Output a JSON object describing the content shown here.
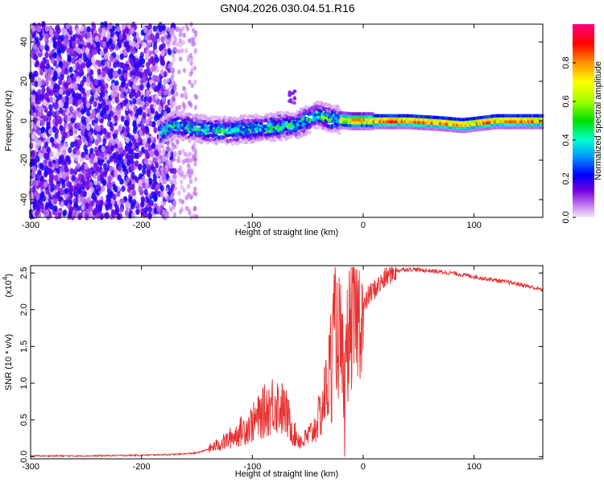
{
  "figure": {
    "title": "GN04.2026.030.04.51.R16"
  },
  "chart_data": [
    {
      "type": "heatmap",
      "xlabel": "Height of straight line (km)",
      "ylabel": "Frequency (Hz)",
      "xlim": [
        -300,
        162
      ],
      "ylim": [
        -49,
        49
      ],
      "xticks": [
        "-300",
        "-200",
        "-100",
        "0",
        "100"
      ],
      "xtick_values": [
        -300,
        -200,
        -100,
        0,
        100
      ],
      "yticks": [
        "-40",
        "-20",
        "0",
        "20",
        "40"
      ],
      "ytick_values": [
        -40,
        -20,
        0,
        20,
        40
      ],
      "colorbar": {
        "label": "Normalized spectral amplitude",
        "range": [
          0,
          1
        ],
        "ticks": [
          "0.0",
          "0.2",
          "0.4",
          "0.6",
          "0.8"
        ],
        "tick_values": [
          0,
          0.2,
          0.4,
          0.6,
          0.8
        ]
      },
      "ridge": [
        {
          "x": -182,
          "y": -6
        },
        {
          "x": -170,
          "y": -2
        },
        {
          "x": -150,
          "y": -4
        },
        {
          "x": -120,
          "y": -5
        },
        {
          "x": -100,
          "y": -4
        },
        {
          "x": -80,
          "y": -3
        },
        {
          "x": -60,
          "y": -2
        },
        {
          "x": -40,
          "y": 3
        },
        {
          "x": -30,
          "y": 1
        },
        {
          "x": -10,
          "y": 0
        },
        {
          "x": 0,
          "y": 0
        },
        {
          "x": 40,
          "y": 0
        },
        {
          "x": 70,
          "y": -1
        },
        {
          "x": 90,
          "y": -2
        },
        {
          "x": 120,
          "y": 0
        },
        {
          "x": 162,
          "y": 0
        }
      ]
    },
    {
      "type": "line",
      "xlabel": "Height of straight line (km)",
      "ylabel": "SNR (10 * v/v)",
      "y_multiplier": "(x10",
      "y_multiplier_exp": "4",
      "y_multiplier_close": ")",
      "xlim": [
        -300,
        162
      ],
      "ylim": [
        -0.03,
        2.6
      ],
      "xticks": [
        "-300",
        "-200",
        "-100",
        "0",
        "100"
      ],
      "xtick_values": [
        -300,
        -200,
        -100,
        0,
        100
      ],
      "yticks": [
        "0.0",
        "0.5",
        "1.0",
        "1.5",
        "2.0",
        "2.5"
      ],
      "ytick_values": [
        0,
        0.5,
        1.0,
        1.5,
        2.0,
        2.5
      ],
      "series": [
        {
          "color": "#e83030",
          "x": [
            -300,
            -250,
            -200,
            -170,
            -150,
            -140,
            -125,
            -110,
            -100,
            -90,
            -80,
            -70,
            -62,
            -55,
            -45,
            -38,
            -32,
            -28,
            -25,
            -20,
            -17,
            -14,
            -10,
            -5,
            0,
            5,
            15,
            25,
            35,
            45,
            60,
            80,
            100,
            120,
            140,
            162
          ],
          "y": [
            0.01,
            0.01,
            0.02,
            0.03,
            0.05,
            0.1,
            0.2,
            0.35,
            0.45,
            0.6,
            0.75,
            0.6,
            0.3,
            0.2,
            0.35,
            0.6,
            1.0,
            1.4,
            1.8,
            1.5,
            0.6,
            1.6,
            1.8,
            1.9,
            2.0,
            2.2,
            2.35,
            2.5,
            2.55,
            2.55,
            2.53,
            2.5,
            2.45,
            2.4,
            2.35,
            2.27
          ]
        }
      ]
    }
  ]
}
